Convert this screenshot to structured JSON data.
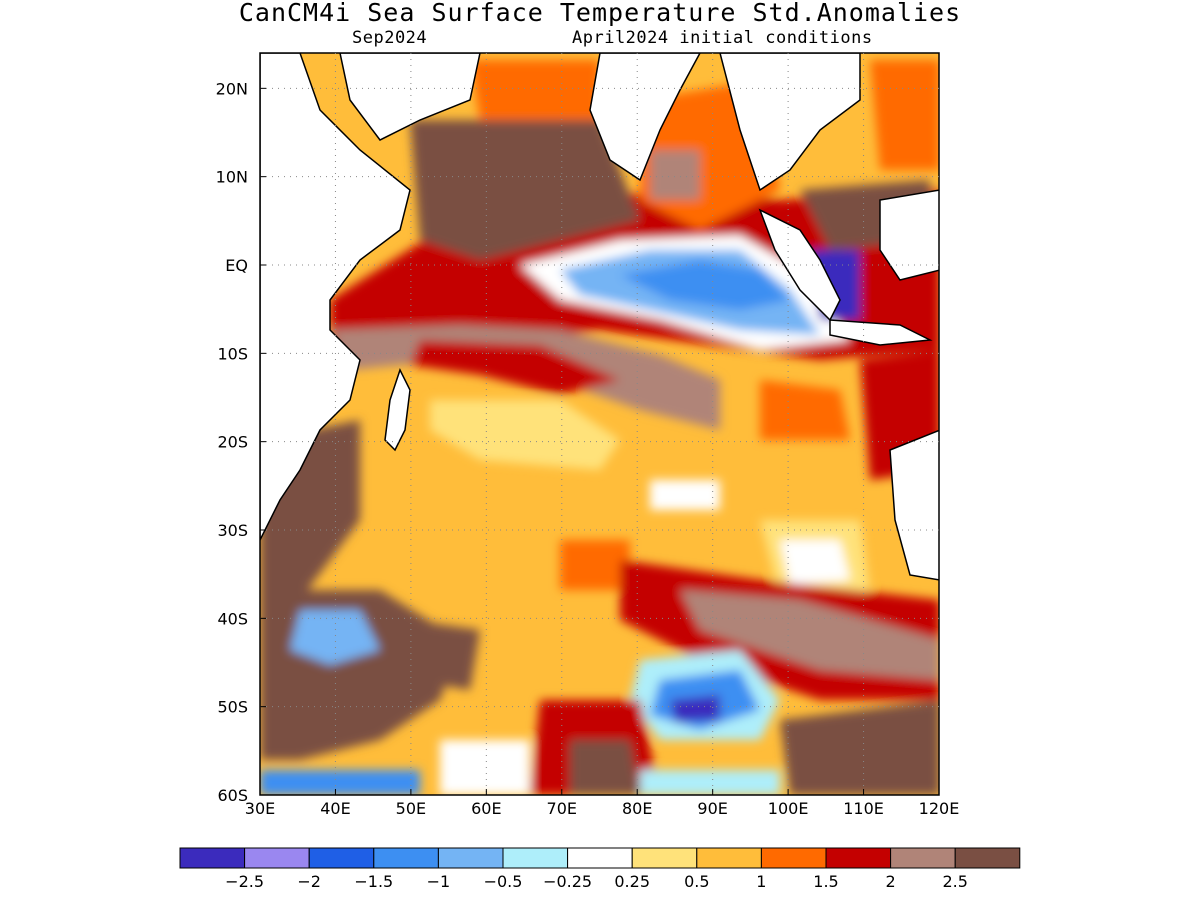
{
  "title": "CanCM4i Sea Surface Temperature Std.Anomalies",
  "subtitle_left": "Sep2024",
  "subtitle_right": "April2024 initial conditions",
  "map": {
    "region": "Indian Ocean",
    "lon_range": [
      30,
      120
    ],
    "lat_range": [
      -60,
      24
    ],
    "lon_ticks": [
      "30E",
      "40E",
      "50E",
      "60E",
      "70E",
      "80E",
      "90E",
      "100E",
      "110E",
      "120E"
    ],
    "lat_ticks": [
      "20N",
      "10N",
      "EQ",
      "10S",
      "20S",
      "30S",
      "40S",
      "50S",
      "60S"
    ],
    "gridlines": "dotted"
  },
  "colorbar": {
    "colors": [
      "#3b2bbd",
      "#9a87f0",
      "#1f5fe6",
      "#3d8ff2",
      "#74b4f4",
      "#aeeefa",
      "#ffffff",
      "#ffe27a",
      "#ffbd3a",
      "#ff6a00",
      "#c40000",
      "#b08478",
      "#7a4f43"
    ],
    "labels": [
      "-2.5",
      "-2",
      "-1.5",
      "-1",
      "-0.5",
      "-0.25",
      "0.25",
      "0.5",
      "1",
      "1.5",
      "2",
      "2.5"
    ]
  }
}
